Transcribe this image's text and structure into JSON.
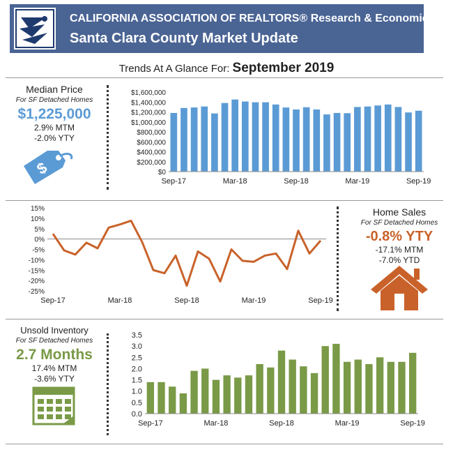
{
  "header": {
    "org_title": "CALIFORNIA ASSOCIATION OF REALTORS® Research & Economics",
    "subtitle": "Santa Clara County Market Update"
  },
  "trend": {
    "label": "Trends At A Glance For:",
    "period": "September 2019"
  },
  "colors": {
    "header_bg": "#4a6494",
    "blue": "#5b9bd5",
    "orange": "#c9622a",
    "green": "#7a9a47"
  },
  "median_price": {
    "title": "Median Price",
    "subtitle": "For SF Detached Homes",
    "value": "$1,225,000",
    "mtm": "2.9% MTM",
    "yty": "-2.0% YTY",
    "icon": "price-tag-icon"
  },
  "home_sales": {
    "title": "Home Sales",
    "subtitle": "For SF Detached Homes",
    "value": "-0.8% YTY",
    "mtm": "-17.1% MTM",
    "ytd": "-7.0% YTD",
    "icon": "house-icon"
  },
  "inventory": {
    "title": "Unsold Inventory",
    "subtitle": "For SF Detached Homes",
    "value": "2.7 Months",
    "mtm": "17.4% MTM",
    "yty": "-3.6% YTY",
    "icon": "calendar-icon"
  },
  "chart_data": [
    {
      "id": "median-price",
      "type": "bar",
      "x_ticks": [
        "Sep-17",
        "Mar-18",
        "Sep-18",
        "Mar-19",
        "Sep-19"
      ],
      "y_ticks": [
        "$0",
        "$200,000",
        "$400,000",
        "$600,000",
        "$800,000",
        "$1,000,000",
        "$1,200,000",
        "$1,400,000",
        "$1,600,000"
      ],
      "ylim": [
        0,
        1600000
      ],
      "values": [
        1180000,
        1280000,
        1290000,
        1310000,
        1170000,
        1380000,
        1450000,
        1410000,
        1395000,
        1395000,
        1350000,
        1290000,
        1250000,
        1295000,
        1250000,
        1150000,
        1180000,
        1175000,
        1300000,
        1310000,
        1330000,
        1350000,
        1300000,
        1190000,
        1225000
      ],
      "color": "#5b9bd5"
    },
    {
      "id": "home-sales",
      "type": "line",
      "x_ticks": [
        "Sep-17",
        "Mar-18",
        "Sep-18",
        "Mar-19",
        "Sep-19"
      ],
      "y_ticks": [
        "-25%",
        "-20%",
        "-15%",
        "-10%",
        "-5%",
        "0%",
        "5%",
        "10%",
        "15%"
      ],
      "ylim": [
        -25,
        15
      ],
      "values": [
        2.5,
        -5.5,
        -7.5,
        -1.8,
        -4.5,
        5.5,
        7.0,
        8.8,
        -1.5,
        -15.0,
        -16.5,
        -8.0,
        -22.5,
        -6.0,
        -9.5,
        -20.5,
        -5.0,
        -10.5,
        -11.0,
        -8.0,
        -7.0,
        -14.5,
        4.0,
        -7.0,
        -0.8
      ],
      "color": "#c9622a"
    },
    {
      "id": "unsold-inventory",
      "type": "bar",
      "x_ticks": [
        "Sep-17",
        "Mar-18",
        "Sep-18",
        "Mar-19",
        "Sep-19"
      ],
      "y_ticks": [
        "0.0",
        "0.5",
        "1.0",
        "1.5",
        "2.0",
        "2.5",
        "3.0",
        "3.5"
      ],
      "ylim": [
        0,
        3.5
      ],
      "values": [
        1.4,
        1.4,
        1.2,
        0.9,
        1.9,
        2.0,
        1.5,
        1.7,
        1.6,
        1.7,
        2.2,
        2.05,
        2.8,
        2.4,
        2.1,
        1.8,
        3.0,
        3.1,
        2.3,
        2.4,
        2.2,
        2.5,
        2.3,
        2.3,
        2.7
      ],
      "color": "#7a9a47"
    }
  ]
}
